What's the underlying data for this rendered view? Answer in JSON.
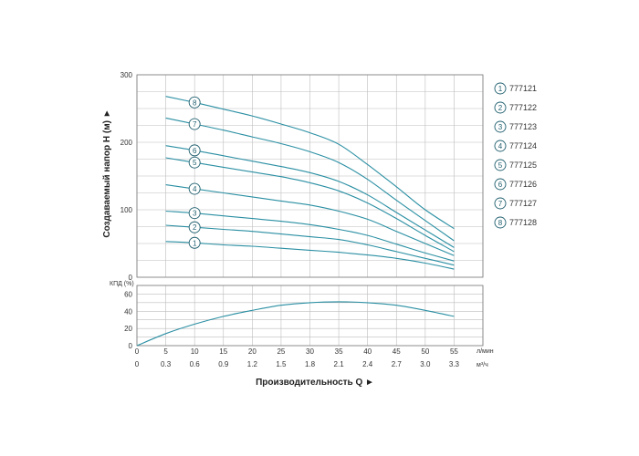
{
  "chart_data": [
    {
      "type": "line",
      "title": "",
      "ylabel": "Создаваемый напор H (м) ►",
      "ylim": [
        0,
        300
      ],
      "yticks": [
        0,
        100,
        200,
        300
      ],
      "xlim": [
        0,
        60
      ],
      "grid": true,
      "legend": "right",
      "line_color": "#2a8fa3",
      "series": [
        {
          "name": "777121",
          "marker": "1",
          "marker_x": 10,
          "x": [
            5,
            10,
            15,
            20,
            25,
            30,
            35,
            40,
            45,
            50,
            55
          ],
          "y": [
            53,
            51,
            48,
            46,
            43,
            40,
            37,
            33,
            28,
            21,
            12
          ]
        },
        {
          "name": "777122",
          "marker": "2",
          "marker_x": 10,
          "x": [
            5,
            10,
            15,
            20,
            25,
            30,
            35,
            40,
            45,
            50,
            55
          ],
          "y": [
            77,
            74,
            71,
            68,
            64,
            60,
            56,
            48,
            38,
            28,
            18
          ]
        },
        {
          "name": "777123",
          "marker": "3",
          "marker_x": 10,
          "x": [
            5,
            10,
            15,
            20,
            25,
            30,
            35,
            40,
            45,
            50,
            55
          ],
          "y": [
            98,
            95,
            91,
            87,
            83,
            78,
            71,
            62,
            49,
            36,
            24
          ]
        },
        {
          "name": "777124",
          "marker": "4",
          "marker_x": 10,
          "x": [
            5,
            10,
            15,
            20,
            25,
            30,
            35,
            40,
            45,
            50,
            55
          ],
          "y": [
            137,
            131,
            125,
            119,
            113,
            107,
            98,
            86,
            68,
            50,
            32
          ]
        },
        {
          "name": "777125",
          "marker": "5",
          "marker_x": 10,
          "x": [
            5,
            10,
            15,
            20,
            25,
            30,
            35,
            40,
            45,
            50,
            55
          ],
          "y": [
            177,
            170,
            163,
            156,
            149,
            140,
            128,
            110,
            87,
            62,
            38
          ]
        },
        {
          "name": "777126",
          "marker": "6",
          "marker_x": 10,
          "x": [
            5,
            10,
            15,
            20,
            25,
            30,
            35,
            40,
            45,
            50,
            55
          ],
          "y": [
            195,
            188,
            180,
            172,
            164,
            155,
            142,
            122,
            96,
            70,
            44
          ]
        },
        {
          "name": "777127",
          "marker": "7",
          "marker_x": 10,
          "x": [
            5,
            10,
            15,
            20,
            25,
            30,
            35,
            40,
            45,
            50,
            55
          ],
          "y": [
            236,
            227,
            218,
            208,
            198,
            186,
            170,
            145,
            114,
            84,
            54
          ]
        },
        {
          "name": "777128",
          "marker": "8",
          "marker_x": 10,
          "x": [
            5,
            10,
            15,
            20,
            25,
            30,
            35,
            40,
            45,
            50,
            55
          ],
          "y": [
            268,
            259,
            249,
            239,
            227,
            214,
            197,
            167,
            134,
            100,
            72
          ]
        }
      ]
    },
    {
      "type": "line",
      "title": "",
      "ylabel": "КПД (%)",
      "ylim": [
        0,
        70
      ],
      "yticks": [
        0,
        20,
        40,
        60
      ],
      "xlim": [
        0,
        60
      ],
      "grid": true,
      "series": [
        {
          "name": "",
          "x": [
            0,
            5,
            10,
            15,
            20,
            25,
            30,
            35,
            40,
            45,
            50,
            55
          ],
          "y": [
            0,
            14,
            25,
            34,
            41,
            47,
            50,
            51,
            50,
            47,
            41,
            34
          ]
        }
      ],
      "x_axis_flow": {
        "ticks": [
          0,
          5,
          10,
          15,
          20,
          25,
          30,
          35,
          40,
          45,
          50,
          55
        ],
        "labels": [
          "0",
          "5",
          "10",
          "15",
          "20",
          "25",
          "30",
          "35",
          "40",
          "45",
          "50",
          "55"
        ],
        "unit": "л/мин"
      },
      "x_axis_volume": {
        "ticks": [
          0,
          5,
          10,
          15,
          20,
          25,
          30,
          35,
          40,
          45,
          50,
          55
        ],
        "labels": [
          "0",
          "0.3",
          "0.6",
          "0.9",
          "1.2",
          "1.5",
          "1.8",
          "2.1",
          "2.4",
          "2.7",
          "3.0",
          "3.3"
        ],
        "unit": "м³/ч"
      },
      "xlabel": "Производительность Q ►"
    }
  ]
}
